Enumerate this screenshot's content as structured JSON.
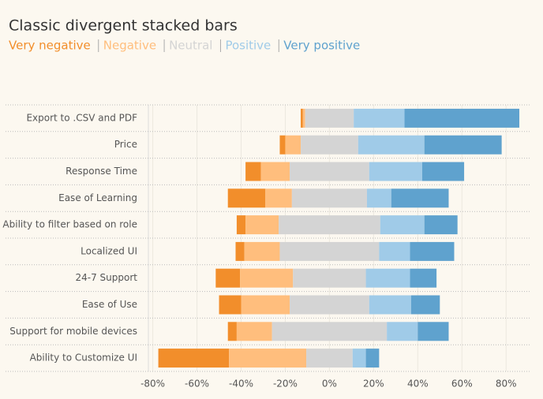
{
  "chart_data": {
    "type": "diverging-stacked-bar",
    "title": "Classic divergent stacked bars",
    "categories": [
      "Export to .CSV and PDF",
      "Price",
      "Response Time",
      "Ease of Learning",
      "Ability to filter based on role",
      "Localized UI",
      "24-7 Support",
      "Ease of Use",
      "Support for mobile devices",
      "Ability to Customize UI"
    ],
    "series": [
      {
        "name": "Very negative",
        "color": "#f28e2b",
        "values": [
          1,
          2.5,
          7,
          17,
          4,
          4,
          11,
          10,
          4,
          32
        ]
      },
      {
        "name": "Negative",
        "color": "#ffbe7d",
        "values": [
          1,
          7,
          13,
          12,
          15,
          16,
          24,
          22,
          16,
          35
        ]
      },
      {
        "name": "Neutral",
        "color": "#d4d4d4",
        "values": [
          22,
          26,
          36,
          34,
          46,
          45,
          33,
          36,
          52,
          21
        ]
      },
      {
        "name": "Positive",
        "color": "#a0cbe8",
        "values": [
          23,
          30,
          24,
          11,
          20,
          14,
          20,
          19,
          14,
          6
        ]
      },
      {
        "name": "Very positive",
        "color": "#5fa2ce",
        "values": [
          52,
          35,
          19,
          26,
          15,
          20,
          12,
          13,
          14,
          6
        ]
      }
    ],
    "xlim": [
      -82,
      91
    ],
    "xticks": [
      {
        "value": -80,
        "label": "-80%"
      },
      {
        "value": -60,
        "label": "-60%"
      },
      {
        "value": -40,
        "label": "-40%"
      },
      {
        "value": -20,
        "label": "-20%"
      },
      {
        "value": 0,
        "label": "0%"
      },
      {
        "value": 20,
        "label": "20%"
      },
      {
        "value": 40,
        "label": "40%"
      },
      {
        "value": 60,
        "label": "60%"
      },
      {
        "value": 80,
        "label": "80%"
      }
    ],
    "grid": true
  }
}
